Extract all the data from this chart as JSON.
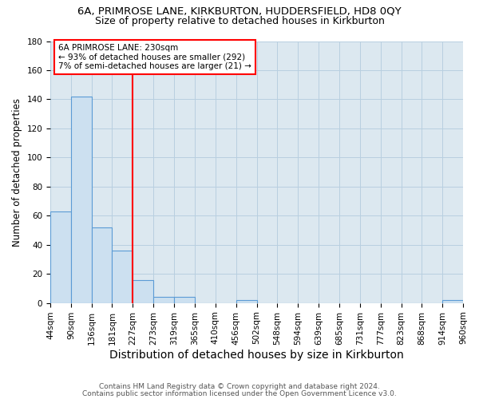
{
  "title1": "6A, PRIMROSE LANE, KIRKBURTON, HUDDERSFIELD, HD8 0QY",
  "title2": "Size of property relative to detached houses in Kirkburton",
  "xlabel": "Distribution of detached houses by size in Kirkburton",
  "ylabel": "Number of detached properties",
  "footnote1": "Contains HM Land Registry data © Crown copyright and database right 2024.",
  "footnote2": "Contains public sector information licensed under the Open Government Licence v3.0.",
  "bar_edges": [
    44,
    90,
    136,
    181,
    227,
    273,
    319,
    365,
    410,
    456,
    502,
    548,
    594,
    639,
    685,
    731,
    777,
    823,
    868,
    914,
    960
  ],
  "bar_heights": [
    63,
    142,
    52,
    36,
    16,
    4,
    4,
    0,
    0,
    2,
    0,
    0,
    0,
    0,
    0,
    0,
    0,
    0,
    0,
    2
  ],
  "bar_color": "#cce0f0",
  "bar_edge_color": "#5b9bd5",
  "property_line_x": 227,
  "property_line_color": "red",
  "annotation_text": "6A PRIMROSE LANE: 230sqm\n← 93% of detached houses are smaller (292)\n7% of semi-detached houses are larger (21) →",
  "ylim": [
    0,
    180
  ],
  "yticks": [
    0,
    20,
    40,
    60,
    80,
    100,
    120,
    140,
    160,
    180
  ],
  "grid_color": "#b8cfe0",
  "bg_color": "#dce8f0",
  "title1_fontsize": 9.5,
  "title2_fontsize": 9,
  "xlabel_fontsize": 10,
  "ylabel_fontsize": 8.5,
  "annotation_fontsize": 7.5,
  "tick_fontsize": 7.5,
  "footnote_fontsize": 6.5
}
